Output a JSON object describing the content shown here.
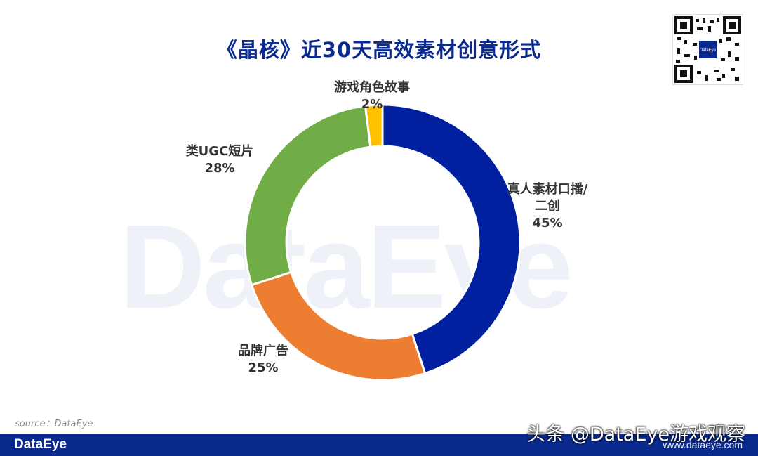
{
  "title": "《晶核》近30天高效素材创意形式",
  "watermark": "DataEye",
  "source": "source：DataEye",
  "footer": {
    "logo": "DataEye",
    "site": "www.dataeye.com"
  },
  "credit": "头条 @DataEye游戏观察",
  "colors": {
    "brand": "#0a2a8e",
    "slice_blue": "#00209f",
    "slice_orange": "#ed7d31",
    "slice_green": "#70ad47",
    "slice_yellow": "#ffc000"
  },
  "chart_data": {
    "type": "pie",
    "donut": true,
    "title": "《晶核》近30天高效素材创意形式",
    "slices": [
      {
        "label": "真人素材口播/二创",
        "label_lines": [
          "真人素材口播/",
          "二创"
        ],
        "value": 45,
        "display": "45%",
        "color": "#00209f"
      },
      {
        "label": "品牌广告",
        "label_lines": [
          "品牌广告"
        ],
        "value": 25,
        "display": "25%",
        "color": "#ed7d31"
      },
      {
        "label": "类UGC短片",
        "label_lines": [
          "类UGC短片"
        ],
        "value": 28,
        "display": "28%",
        "color": "#70ad47"
      },
      {
        "label": "游戏角色故事",
        "label_lines": [
          "游戏角色故事"
        ],
        "value": 2,
        "display": "2%",
        "color": "#ffc000"
      }
    ]
  }
}
